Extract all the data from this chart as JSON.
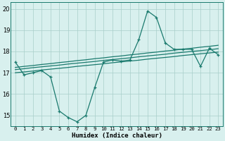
{
  "x": [
    0,
    1,
    2,
    3,
    4,
    5,
    6,
    7,
    8,
    9,
    10,
    11,
    12,
    13,
    14,
    15,
    16,
    17,
    18,
    19,
    20,
    21,
    22,
    23
  ],
  "y_main": [
    17.5,
    16.9,
    17.0,
    17.1,
    16.8,
    15.2,
    14.9,
    14.7,
    15.0,
    16.3,
    17.5,
    17.6,
    17.55,
    17.6,
    18.55,
    19.9,
    19.6,
    18.4,
    18.1,
    18.1,
    18.1,
    17.3,
    18.15,
    17.85
  ],
  "trend_line1": [
    17.0,
    17.04,
    17.08,
    17.13,
    17.17,
    17.21,
    17.25,
    17.3,
    17.34,
    17.38,
    17.42,
    17.47,
    17.51,
    17.55,
    17.59,
    17.64,
    17.68,
    17.72,
    17.76,
    17.81,
    17.85,
    17.89,
    17.93,
    17.97
  ],
  "trend_line2": [
    17.15,
    17.19,
    17.24,
    17.28,
    17.32,
    17.36,
    17.41,
    17.45,
    17.49,
    17.53,
    17.58,
    17.62,
    17.66,
    17.7,
    17.75,
    17.79,
    17.83,
    17.87,
    17.92,
    17.96,
    18.0,
    18.04,
    18.08,
    18.13
  ],
  "trend_line3": [
    17.25,
    17.3,
    17.34,
    17.39,
    17.43,
    17.48,
    17.52,
    17.57,
    17.61,
    17.66,
    17.7,
    17.75,
    17.79,
    17.84,
    17.88,
    17.93,
    17.97,
    18.02,
    18.06,
    18.11,
    18.15,
    18.2,
    18.24,
    18.29
  ],
  "line_color": "#1a7a6e",
  "bg_color": "#d8f0ee",
  "grid_color": "#a8ceca",
  "xlabel": "Humidex (Indice chaleur)",
  "ylim": [
    14.5,
    20.3
  ],
  "yticks": [
    15,
    16,
    17,
    18,
    19,
    20
  ],
  "xticks": [
    0,
    1,
    2,
    3,
    4,
    5,
    6,
    7,
    8,
    9,
    10,
    11,
    12,
    13,
    14,
    15,
    16,
    17,
    18,
    19,
    20,
    21,
    22,
    23
  ],
  "xlabel_fontsize": 6.5,
  "ytick_fontsize": 6.0,
  "xtick_fontsize": 5.2
}
